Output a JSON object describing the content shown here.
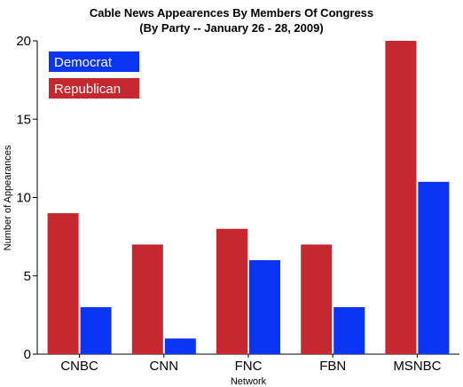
{
  "chart_data": {
    "type": "bar",
    "title": "Cable News Appearences By Members Of Congress",
    "subtitle": "(By Party -- January 26 - 28, 2009)",
    "xlabel": "Network",
    "ylabel": "Number of Appearances",
    "categories": [
      "CNBC",
      "CNN",
      "FNC",
      "FBN",
      "MSNBC"
    ],
    "series": [
      {
        "name": "Republican",
        "color": "#c62830",
        "values": [
          9,
          7,
          8,
          7,
          20
        ]
      },
      {
        "name": "Democrat",
        "color": "#0a35f5",
        "values": [
          3,
          1,
          6,
          3,
          11
        ]
      }
    ],
    "legend_order": [
      "Democrat",
      "Republican"
    ],
    "legend_position": "top-left",
    "ylim": [
      0,
      20
    ],
    "yticks": [
      0,
      5,
      10,
      15,
      20
    ],
    "grid": false
  }
}
